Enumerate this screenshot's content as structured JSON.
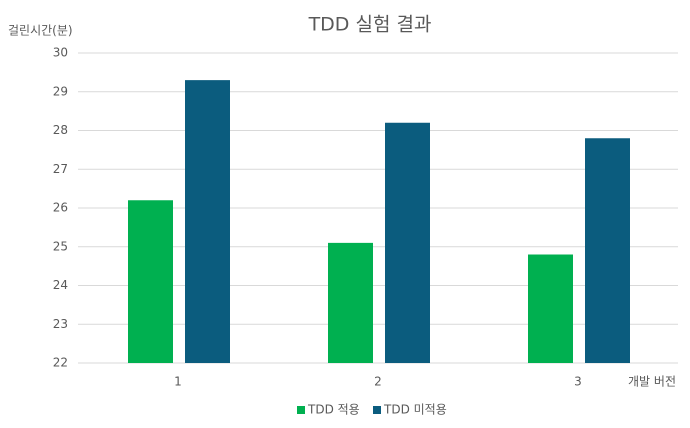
{
  "chart_data": {
    "type": "bar",
    "title": "TDD 실험 결과",
    "y_label": "걸린시간(분)",
    "x_label": "개발 버전",
    "categories": [
      "1",
      "2",
      "3"
    ],
    "series": [
      {
        "name": "TDD 적용",
        "color": "#00b050",
        "values": [
          26.2,
          25.1,
          24.8
        ]
      },
      {
        "name": "TDD 미적용",
        "color": "#0b5c7e",
        "values": [
          29.3,
          28.2,
          27.8
        ]
      }
    ],
    "ylim": [
      22,
      30
    ],
    "yticks": [
      22,
      23,
      24,
      25,
      26,
      27,
      28,
      29,
      30
    ],
    "grid": true,
    "legend": "bottom"
  }
}
